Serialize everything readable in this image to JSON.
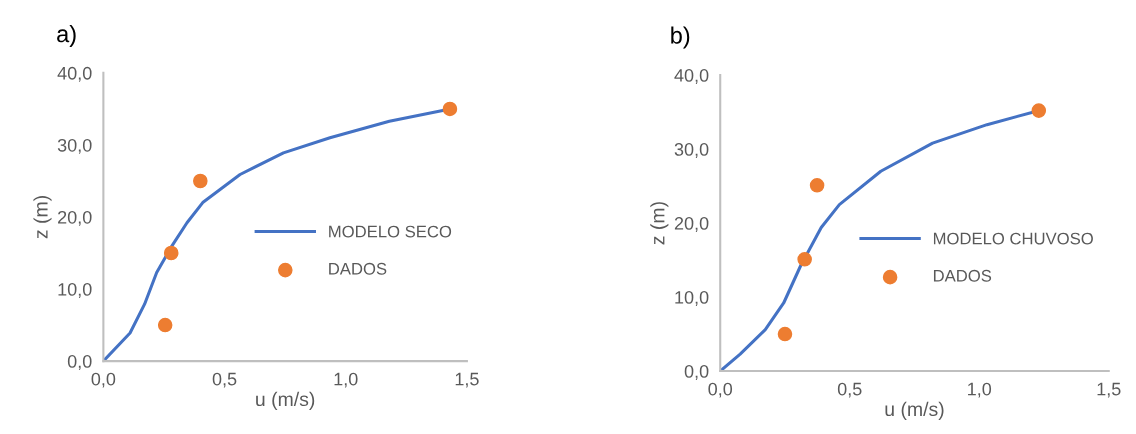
{
  "chart_data": [
    {
      "type": "line",
      "title": "a)",
      "xlabel": "u (m/s)",
      "ylabel": "z (m)",
      "xlim": [
        0,
        1.5
      ],
      "ylim": [
        0,
        40
      ],
      "xticks": [
        {
          "value": 0,
          "label": "0,0"
        },
        {
          "value": 0.5,
          "label": "0,5"
        },
        {
          "value": 1.0,
          "label": "1,0"
        },
        {
          "value": 1.5,
          "label": "1,5"
        }
      ],
      "yticks": [
        {
          "value": 0,
          "label": "0,0"
        },
        {
          "value": 10,
          "label": "10,0"
        },
        {
          "value": 20,
          "label": "20,0"
        },
        {
          "value": 30,
          "label": "30,0"
        },
        {
          "value": 40,
          "label": "40,0"
        }
      ],
      "grid": false,
      "legend": "right",
      "series": [
        {
          "name": "MODELO SECO",
          "color": "#4472c4",
          "marker": "none",
          "x": [
            0,
            0.11,
            0.17,
            0.22,
            0.283,
            0.345,
            0.41,
            0.564,
            0.743,
            0.935,
            1.18,
            1.43
          ],
          "values": [
            0,
            3.9,
            7.9,
            12.3,
            16,
            19.2,
            22,
            25.9,
            28.9,
            31,
            33.3,
            35
          ]
        },
        {
          "name": "DADOS",
          "type": "scatter",
          "color": "#ed7d31",
          "marker": "circle",
          "x": [
            0.255,
            0.28,
            0.4,
            1.43
          ],
          "values": [
            5,
            15,
            25,
            35
          ]
        }
      ]
    },
    {
      "type": "line",
      "title": "b)",
      "xlabel": "u (m/s)",
      "ylabel": "z (m)",
      "xlim": [
        0,
        1.5
      ],
      "ylim": [
        0,
        40
      ],
      "xticks": [
        {
          "value": 0,
          "label": "0,0"
        },
        {
          "value": 0.5,
          "label": "0,5"
        },
        {
          "value": 1.0,
          "label": "1,0"
        },
        {
          "value": 1.5,
          "label": "1,5"
        }
      ],
      "yticks": [
        {
          "value": 0,
          "label": "0,0"
        },
        {
          "value": 10,
          "label": "10,0"
        },
        {
          "value": 20,
          "label": "20,0"
        },
        {
          "value": 30,
          "label": "30,0"
        },
        {
          "value": 40,
          "label": "40,0"
        }
      ],
      "grid": false,
      "legend": "right",
      "series": [
        {
          "name": "MODELO CHUVOSO",
          "color": "#4472c4",
          "marker": "none",
          "x": [
            0,
            0.077,
            0.174,
            0.245,
            0.31,
            0.39,
            0.46,
            0.62,
            0.82,
            1.03,
            1.23
          ],
          "values": [
            0,
            2.3,
            5.6,
            9.2,
            14.2,
            19.4,
            22.5,
            27,
            30.8,
            33.3,
            35.2
          ]
        },
        {
          "name": "DADOS",
          "type": "scatter",
          "color": "#ed7d31",
          "marker": "circle",
          "x": [
            0.25,
            0.326,
            0.374,
            1.23
          ],
          "values": [
            5,
            15.1,
            25.1,
            35.2
          ]
        }
      ]
    }
  ]
}
